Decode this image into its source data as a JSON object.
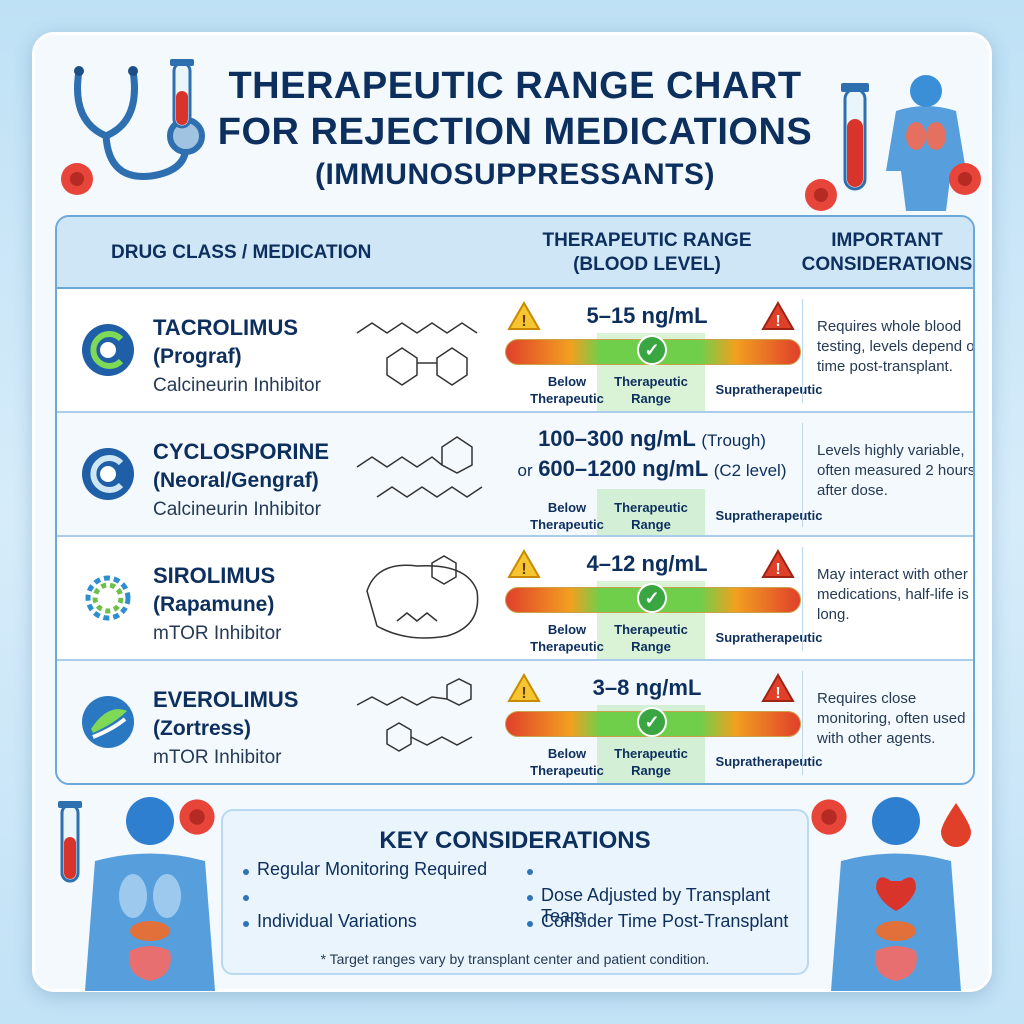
{
  "title": {
    "line1": "THERAPEUTIC RANGE CHART",
    "line2": "FOR REJECTION MEDICATIONS",
    "line3": "(IMMUNOSUPPRESSANTS)"
  },
  "headers": {
    "drug": "DRUG CLASS / MEDICATION",
    "range_l1": "THERAPEUTIC RANGE",
    "range_l2": "(BLOOD LEVEL)",
    "cons_l1": "IMPORTANT",
    "cons_l2": "CONSIDERATIONS"
  },
  "range_labels": {
    "below_l1": "Below",
    "below_l2": "Therapeutic",
    "ther_l1": "Therapeutic",
    "ther_l2": "Range",
    "supra": "Supratherapeutic"
  },
  "drugs": [
    {
      "name": "TACROLIMUS",
      "brand": "(Prograf)",
      "class": "Calcineurin Inhibitor",
      "range": "5–15 ng/mL",
      "note": "Requires whole blood testing, levels depend on time post-transplant."
    },
    {
      "name": "CYCLOSPORINE",
      "brand": "(Neoral/Gengraf)",
      "class": "Calcineurin Inhibitor",
      "range_a": "100–300 ng/mL",
      "range_a_note": "(Trough)",
      "range_b_prefix": "or",
      "range_b": "600–1200 ng/mL",
      "range_b_note": "(C2 level)",
      "note": "Levels highly variable, often measured 2 hours after dose."
    },
    {
      "name": "SIROLIMUS",
      "brand": "(Rapamune)",
      "class": "mTOR Inhibitor",
      "range": "4–12 ng/mL",
      "note": "May interact with other medications, half-life is long."
    },
    {
      "name": "EVEROLIMUS",
      "brand": "(Zortress)",
      "class": "mTOR Inhibitor",
      "range": "3–8 ng/mL",
      "note": "Requires close monitoring, often used with other agents."
    }
  ],
  "key": {
    "title": "KEY CONSIDERATIONS",
    "left_items": [
      "Regular Monitoring Required",
      "",
      "Individual Variations"
    ],
    "right_items": [
      "",
      "Dose Adjusted by Transplant Team",
      "Consider Time Post-Transplant"
    ],
    "footnote": "* Target ranges vary by transplant center and patient condition."
  },
  "colors": {
    "navy": "#0d2f5e",
    "green": "#3aa641",
    "red": "#e0402a",
    "orange": "#f2a020"
  },
  "icons": [
    "stethoscope-icon",
    "test-tube-icon",
    "human-body-icon",
    "blood-cell-icon",
    "warning-icon",
    "check-icon",
    "blood-drop-icon"
  ]
}
